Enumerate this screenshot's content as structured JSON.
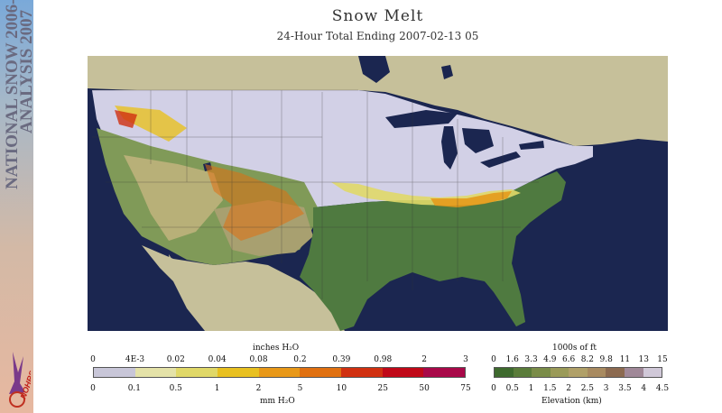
{
  "sidebar": {
    "line1": "NATIONAL SNOW 2006-",
    "line2": "ANALYSIS 2007",
    "logo_text": "NOHRSC"
  },
  "header": {
    "title": "Snow Melt",
    "subtitle": "24-Hour Total Ending 2007-02-13 05"
  },
  "melt_legend": {
    "top_unit": "inches H₂O",
    "top_ticks": [
      "0",
      "4E-3",
      "0.02",
      "0.04",
      "0.08",
      "0.2",
      "0.39",
      "0.98",
      "2",
      "3"
    ],
    "bottom_ticks": [
      "0",
      "0.1",
      "0.5",
      "1",
      "2",
      "5",
      "10",
      "25",
      "50",
      "75"
    ],
    "bottom_unit": "mm H₂O",
    "colors": [
      "#c8c6d8",
      "#e4e2a8",
      "#e0d868",
      "#e8c020",
      "#e89818",
      "#e07010",
      "#d03010",
      "#c00818",
      "#a80848"
    ]
  },
  "elev_legend": {
    "top_unit": "1000s of ft",
    "top_ticks": [
      "0",
      "1.6",
      "3.3",
      "4.9",
      "6.6",
      "8.2",
      "9.8",
      "11",
      "13",
      "15"
    ],
    "bottom_ticks": [
      "0",
      "0.5",
      "1",
      "1.5",
      "2",
      "2.5",
      "3",
      "3.5",
      "4",
      "4.5"
    ],
    "bottom_unit": "Elevation (km)",
    "colors": [
      "#3e6a2e",
      "#5a7c3a",
      "#7a8c48",
      "#9a9a58",
      "#b0a068",
      "#a88a60",
      "#8c6a50",
      "#a08898",
      "#d0c8d8"
    ]
  },
  "map_colors": {
    "ocean": "#1b2650",
    "land_other": "#c6c09a",
    "snow": "#d2d0e6",
    "bare_low": "#4f7a40",
    "bare_mid": "#809a58",
    "bare_high": "#b8b078",
    "lakes": "#1b2650"
  }
}
